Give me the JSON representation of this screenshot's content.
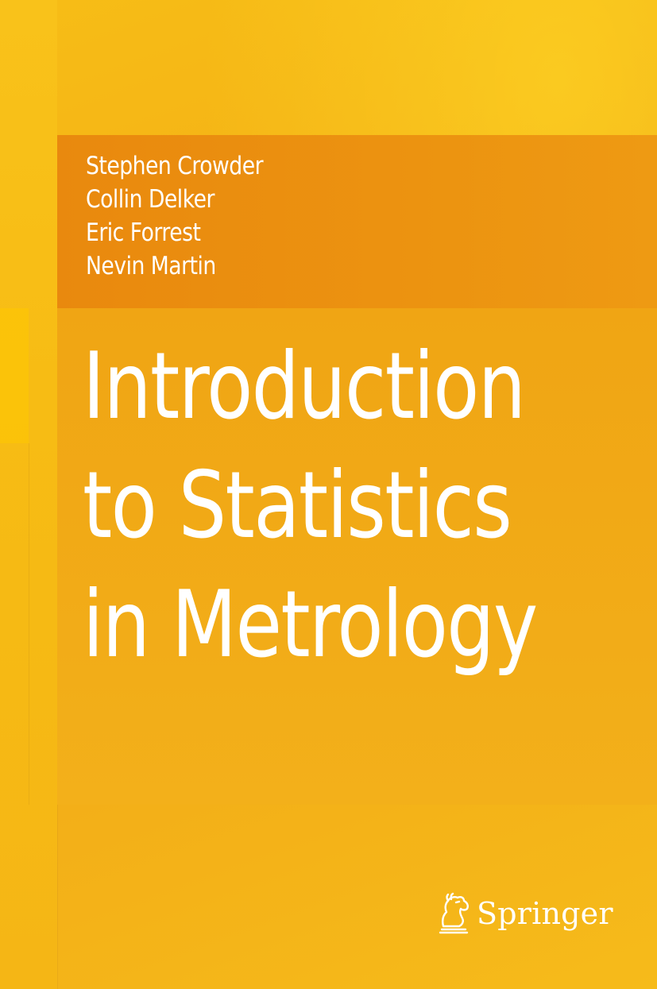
{
  "book": {
    "authors": [
      "Stephen Crowder",
      "Collin Delker",
      "Eric Forrest",
      "Nevin Martin"
    ],
    "title_lines": [
      "Introduction",
      "to Statistics",
      "in Metrology"
    ]
  },
  "publisher": {
    "name": "Springer",
    "logo_icon": "springer-horse-icon"
  },
  "colors": {
    "background": "#f3af17",
    "author_band": "#eb8f10",
    "text": "#ffffff"
  }
}
